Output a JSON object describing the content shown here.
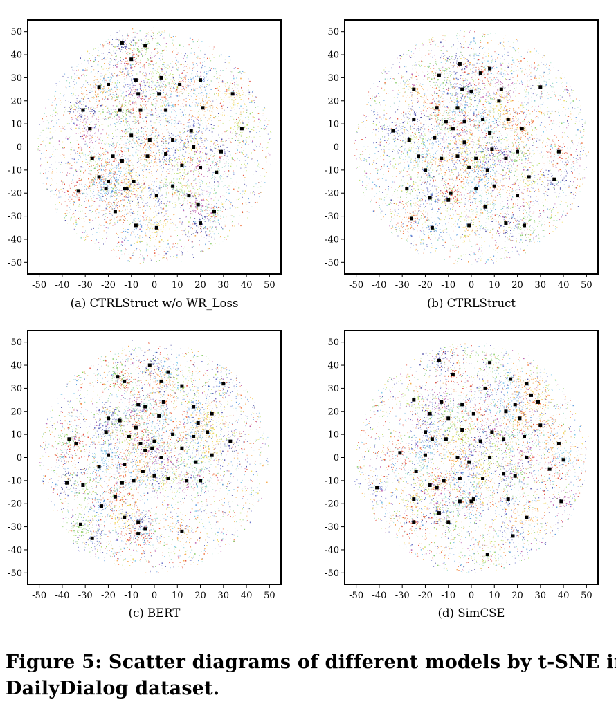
{
  "figure": {
    "caption_line1": "Figure 5: Scatter diagrams of different models by t-SNE in",
    "caption_line2": "DailyDialog dataset."
  },
  "chart_data": [
    {
      "type": "scatter",
      "title": "(a) CTRLStruct w/o WR_Loss",
      "xlim": [
        -55,
        55
      ],
      "ylim": [
        -55,
        55
      ],
      "xticks": [
        -50,
        -40,
        -30,
        -20,
        -10,
        0,
        10,
        20,
        30,
        40,
        50
      ],
      "yticks": [
        -50,
        -40,
        -30,
        -20,
        -10,
        0,
        10,
        20,
        30,
        40,
        50
      ],
      "grid": false,
      "point_cloud_radius": 51,
      "colors": [
        "#3b3c9e",
        "#5a63c3",
        "#4a90d9",
        "#6fc2e8",
        "#8fd7c0",
        "#7ec75a",
        "#b9de5b",
        "#f2d34c",
        "#f6a13a",
        "#ef6a2e",
        "#e03a24",
        "#b54fa6"
      ],
      "centroids": [
        [
          -14,
          45
        ],
        [
          -4,
          44
        ],
        [
          -10,
          38
        ],
        [
          -20,
          27
        ],
        [
          -24,
          26
        ],
        [
          -8,
          29
        ],
        [
          3,
          30
        ],
        [
          -7,
          23
        ],
        [
          2,
          23
        ],
        [
          11,
          27
        ],
        [
          20,
          29
        ],
        [
          34,
          23
        ],
        [
          -31,
          16
        ],
        [
          -15,
          16
        ],
        [
          -6,
          16
        ],
        [
          5,
          16
        ],
        [
          21,
          17
        ],
        [
          16,
          7
        ],
        [
          38,
          8
        ],
        [
          -28,
          8
        ],
        [
          -10,
          5
        ],
        [
          -2,
          3
        ],
        [
          8,
          3
        ],
        [
          17,
          0
        ],
        [
          29,
          -2
        ],
        [
          -27,
          -5
        ],
        [
          -18,
          -4
        ],
        [
          -14,
          -6
        ],
        [
          -3,
          -4
        ],
        [
          5,
          -3
        ],
        [
          12,
          -8
        ],
        [
          20,
          -9
        ],
        [
          27,
          -11
        ],
        [
          -24,
          -13
        ],
        [
          -20,
          -15
        ],
        [
          -9,
          -15
        ],
        [
          -13,
          -18
        ],
        [
          8,
          -17
        ],
        [
          -33,
          -19
        ],
        [
          -21,
          -18
        ],
        [
          -12,
          -18
        ],
        [
          1,
          -21
        ],
        [
          15,
          -21
        ],
        [
          19,
          -25
        ],
        [
          26,
          -28
        ],
        [
          -17,
          -28
        ],
        [
          -8,
          -34
        ],
        [
          1,
          -35
        ],
        [
          20,
          -33
        ]
      ]
    },
    {
      "type": "scatter",
      "title": "(b) CTRLStruct",
      "xlim": [
        -55,
        55
      ],
      "ylim": [
        -55,
        55
      ],
      "xticks": [
        -50,
        -40,
        -30,
        -20,
        -10,
        0,
        10,
        20,
        30,
        40,
        50
      ],
      "yticks": [
        -50,
        -40,
        -30,
        -20,
        -10,
        0,
        10,
        20,
        30,
        40,
        50
      ],
      "grid": false,
      "point_cloud_radius": 51,
      "colors": [
        "#3b3c9e",
        "#5a63c3",
        "#4a90d9",
        "#6fc2e8",
        "#8fd7c0",
        "#7ec75a",
        "#b9de5b",
        "#f2d34c",
        "#f6a13a",
        "#ef6a2e",
        "#e03a24",
        "#b54fa6"
      ],
      "centroids": [
        [
          -5,
          36
        ],
        [
          -14,
          31
        ],
        [
          4,
          32
        ],
        [
          8,
          34
        ],
        [
          -25,
          25
        ],
        [
          -4,
          25
        ],
        [
          0,
          24
        ],
        [
          13,
          25
        ],
        [
          30,
          26
        ],
        [
          -15,
          17
        ],
        [
          -6,
          17
        ],
        [
          12,
          20
        ],
        [
          -25,
          12
        ],
        [
          -11,
          11
        ],
        [
          -3,
          11
        ],
        [
          5,
          12
        ],
        [
          16,
          12
        ],
        [
          -34,
          7
        ],
        [
          -27,
          3
        ],
        [
          -8,
          8
        ],
        [
          8,
          6
        ],
        [
          22,
          8
        ],
        [
          -16,
          4
        ],
        [
          -3,
          2
        ],
        [
          9,
          -1
        ],
        [
          20,
          -2
        ],
        [
          38,
          -2
        ],
        [
          -23,
          -4
        ],
        [
          -13,
          -5
        ],
        [
          -6,
          -4
        ],
        [
          2,
          -5
        ],
        [
          15,
          -5
        ],
        [
          -20,
          -10
        ],
        [
          -1,
          -9
        ],
        [
          7,
          -10
        ],
        [
          25,
          -13
        ],
        [
          36,
          -14
        ],
        [
          -28,
          -18
        ],
        [
          -9,
          -20
        ],
        [
          2,
          -18
        ],
        [
          10,
          -17
        ],
        [
          -18,
          -22
        ],
        [
          -10,
          -23
        ],
        [
          20,
          -21
        ],
        [
          6,
          -26
        ],
        [
          -26,
          -31
        ],
        [
          -17,
          -35
        ],
        [
          -1,
          -34
        ],
        [
          15,
          -33
        ],
        [
          23,
          -34
        ]
      ]
    },
    {
      "type": "scatter",
      "title": "(c) BERT",
      "xlim": [
        -55,
        55
      ],
      "ylim": [
        -55,
        55
      ],
      "xticks": [
        -50,
        -40,
        -30,
        -20,
        -10,
        0,
        10,
        20,
        30,
        40,
        50
      ],
      "yticks": [
        -50,
        -40,
        -30,
        -20,
        -10,
        0,
        10,
        20,
        30,
        40,
        50
      ],
      "grid": false,
      "point_cloud_radius": 50,
      "colors": [
        "#3b3c9e",
        "#5a63c3",
        "#4a90d9",
        "#6fc2e8",
        "#8fd7c0",
        "#7ec75a",
        "#b9de5b",
        "#f2d34c",
        "#f6a13a",
        "#ef6a2e",
        "#e03a24",
        "#b54fa6"
      ],
      "centroids": [
        [
          -2,
          40
        ],
        [
          -16,
          35
        ],
        [
          -13,
          33
        ],
        [
          6,
          37
        ],
        [
          3,
          33
        ],
        [
          30,
          32
        ],
        [
          12,
          31
        ],
        [
          -7,
          23
        ],
        [
          -4,
          22
        ],
        [
          4,
          24
        ],
        [
          17,
          22
        ],
        [
          25,
          19
        ],
        [
          -20,
          17
        ],
        [
          -15,
          16
        ],
        [
          -8,
          13
        ],
        [
          2,
          18
        ],
        [
          19,
          15
        ],
        [
          -21,
          11
        ],
        [
          -11,
          9
        ],
        [
          -6,
          6
        ],
        [
          0,
          7
        ],
        [
          8,
          10
        ],
        [
          17,
          9
        ],
        [
          23,
          11
        ],
        [
          33,
          7
        ],
        [
          -37,
          8
        ],
        [
          -34,
          6
        ],
        [
          -20,
          1
        ],
        [
          -4,
          3
        ],
        [
          -1,
          4
        ],
        [
          12,
          4
        ],
        [
          3,
          0
        ],
        [
          18,
          -2
        ],
        [
          -13,
          -3
        ],
        [
          -24,
          -4
        ],
        [
          25,
          1
        ],
        [
          -38,
          -11
        ],
        [
          -31,
          -12
        ],
        [
          -14,
          -11
        ],
        [
          -9,
          -10
        ],
        [
          -5,
          -6
        ],
        [
          0,
          -8
        ],
        [
          6,
          -9
        ],
        [
          14,
          -10
        ],
        [
          20,
          -10
        ],
        [
          -17,
          -17
        ],
        [
          -23,
          -21
        ],
        [
          -13,
          -26
        ],
        [
          -7,
          -28
        ],
        [
          -32,
          -29
        ],
        [
          -7,
          -33
        ],
        [
          -4,
          -31
        ],
        [
          12,
          -32
        ],
        [
          -27,
          -35
        ]
      ]
    },
    {
      "type": "scatter",
      "title": "(d) SimCSE",
      "xlim": [
        -55,
        55
      ],
      "ylim": [
        -55,
        55
      ],
      "xticks": [
        -50,
        -40,
        -30,
        -20,
        -10,
        0,
        10,
        20,
        30,
        40,
        50
      ],
      "yticks": [
        -50,
        -40,
        -30,
        -20,
        -10,
        0,
        10,
        20,
        30,
        40,
        50
      ],
      "grid": false,
      "point_cloud_radius": 50,
      "colors": [
        "#3b3c9e",
        "#5a63c3",
        "#4a90d9",
        "#6fc2e8",
        "#8fd7c0",
        "#7ec75a",
        "#b9de5b",
        "#f2d34c",
        "#f6a13a",
        "#ef6a2e",
        "#e03a24",
        "#b54fa6"
      ],
      "centroids": [
        [
          -14,
          42
        ],
        [
          8,
          41
        ],
        [
          -8,
          36
        ],
        [
          17,
          34
        ],
        [
          24,
          32
        ],
        [
          6,
          30
        ],
        [
          -25,
          25
        ],
        [
          -13,
          24
        ],
        [
          -4,
          23
        ],
        [
          26,
          27
        ],
        [
          19,
          23
        ],
        [
          29,
          24
        ],
        [
          -18,
          19
        ],
        [
          -10,
          17
        ],
        [
          1,
          19
        ],
        [
          15,
          20
        ],
        [
          21,
          17
        ],
        [
          -20,
          11
        ],
        [
          -4,
          12
        ],
        [
          9,
          11
        ],
        [
          23,
          9
        ],
        [
          30,
          14
        ],
        [
          -17,
          8
        ],
        [
          -11,
          8
        ],
        [
          4,
          7
        ],
        [
          14,
          8
        ],
        [
          -31,
          2
        ],
        [
          -20,
          1
        ],
        [
          -6,
          0
        ],
        [
          -1,
          -2
        ],
        [
          8,
          0
        ],
        [
          24,
          0
        ],
        [
          -24,
          -6
        ],
        [
          -12,
          -10
        ],
        [
          -5,
          -9
        ],
        [
          5,
          -9
        ],
        [
          14,
          -7
        ],
        [
          19,
          -8
        ],
        [
          34,
          -5
        ],
        [
          40,
          -1
        ],
        [
          38,
          6
        ],
        [
          -41,
          -13
        ],
        [
          -18,
          -12
        ],
        [
          -15,
          -13
        ],
        [
          -5,
          -19
        ],
        [
          1,
          -18
        ],
        [
          16,
          -18
        ],
        [
          -25,
          -18
        ],
        [
          -14,
          -24
        ],
        [
          -10,
          -28
        ],
        [
          -25,
          -28
        ],
        [
          0,
          -19
        ],
        [
          24,
          -26
        ],
        [
          18,
          -34
        ],
        [
          7,
          -42
        ],
        [
          39,
          -19
        ]
      ]
    }
  ]
}
